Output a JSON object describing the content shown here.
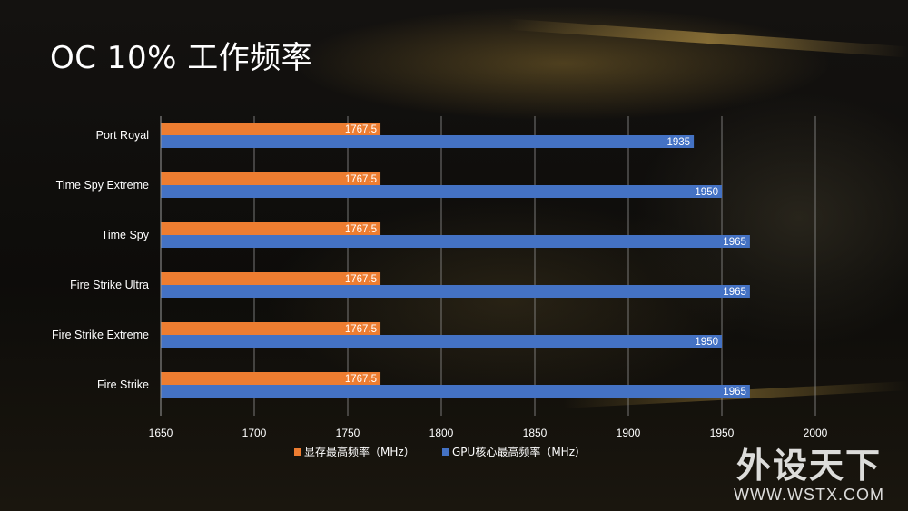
{
  "title": "OC 10% 工作频率",
  "watermark": {
    "name": "外设天下",
    "url": "WWW.WSTX.COM"
  },
  "colors": {
    "memory": "#ed7d31",
    "core": "#4472c4",
    "grid": "#9a9a9a",
    "text": "#ffffff"
  },
  "chart_data": {
    "type": "bar",
    "orientation": "horizontal",
    "categories": [
      "Port Royal",
      "Time Spy Extreme",
      "Time Spy",
      "Fire Strike Ultra",
      "Fire Strike Extreme",
      "Fire Strike"
    ],
    "series": [
      {
        "name": "显存最高频率（MHz）",
        "values": [
          1767.5,
          1767.5,
          1767.5,
          1767.5,
          1767.5,
          1767.5
        ]
      },
      {
        "name": "GPU核心最高频率（MHz）",
        "values": [
          1935,
          1950,
          1965,
          1965,
          1950,
          1965
        ]
      }
    ],
    "xlim": [
      1650,
      2000
    ],
    "xticks": [
      1650,
      1700,
      1750,
      1800,
      1850,
      1900,
      1950,
      2000
    ],
    "grid": true,
    "legend": "bottom"
  }
}
